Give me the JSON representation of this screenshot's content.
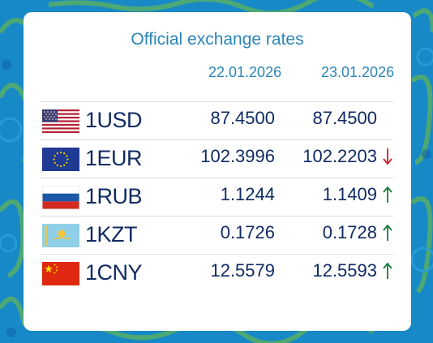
{
  "colors": {
    "background": "#1789c6",
    "card": "#ffffff",
    "title": "#2a86b8",
    "text": "#0f2b63",
    "up": "#1a7a3a",
    "down": "#c8202a"
  },
  "title": "Official exchange rates",
  "dates": [
    "22.01.2026",
    "23.01.2026"
  ],
  "rates": [
    {
      "flag": "us-flag-icon",
      "code": "1USD",
      "rate_prev": "87.4500",
      "rate_curr": "87.4500",
      "trend": "none"
    },
    {
      "flag": "eu-flag-icon",
      "code": "1EUR",
      "rate_prev": "102.3996",
      "rate_curr": "102.2203",
      "trend": "down"
    },
    {
      "flag": "ru-flag-icon",
      "code": "1RUB",
      "rate_prev": "1.1244",
      "rate_curr": "1.1409",
      "trend": "up"
    },
    {
      "flag": "kz-flag-icon",
      "code": "1KZT",
      "rate_prev": "0.1726",
      "rate_curr": "0.1728",
      "trend": "up"
    },
    {
      "flag": "cn-flag-icon",
      "code": "1CNY",
      "rate_prev": "12.5579",
      "rate_curr": "12.5593",
      "trend": "up"
    }
  ]
}
